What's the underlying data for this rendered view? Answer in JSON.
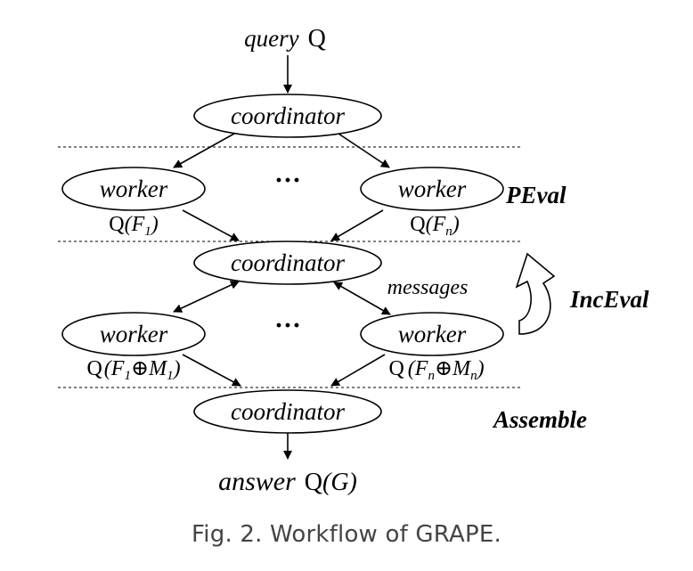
{
  "diagram": {
    "query": {
      "word": "query",
      "symbol": "Q"
    },
    "coordinator_label": "coordinator",
    "worker_label": "worker",
    "dots": "···",
    "messages_label": "messages",
    "phase_peval": "PEval",
    "phase_inceval": "IncEval",
    "phase_assemble": "Assemble",
    "answer": {
      "word": "answer",
      "symbol": "Q",
      "arg": "(G)"
    },
    "sub_labels": {
      "q": "Q",
      "peval_left": {
        "F": "F",
        "i": "1"
      },
      "peval_right": {
        "F": "F",
        "i": "n"
      },
      "inc_left": {
        "F": "F",
        "i": "1",
        "op": "⊕",
        "M": "M"
      },
      "inc_right": {
        "F": "F",
        "i": "n",
        "op": "⊕",
        "M": "M"
      }
    }
  },
  "caption": "Fig. 2.  Workflow of GRAPE."
}
